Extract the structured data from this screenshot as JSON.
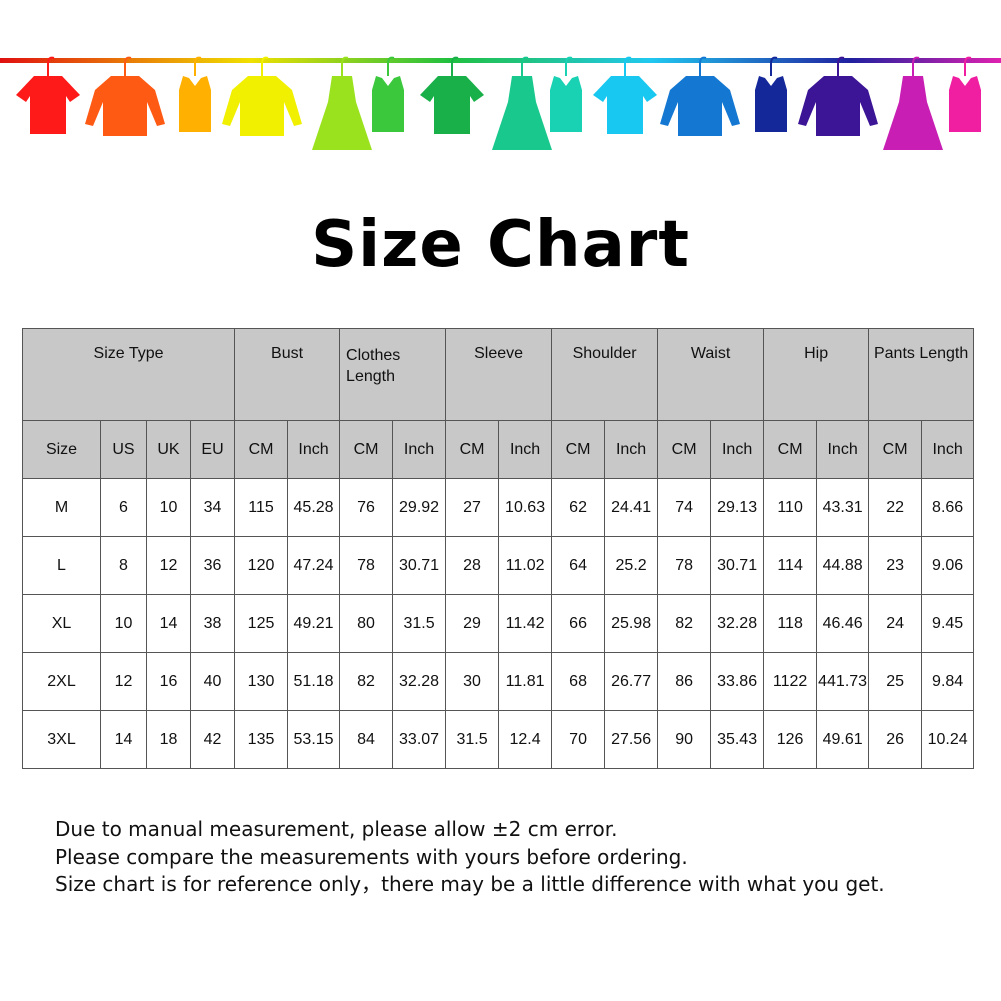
{
  "banner": {
    "icon": "hanging-clothes-rainbow",
    "colors": [
      "#ff1a1a",
      "#ff5a14",
      "#ffb000",
      "#f0f000",
      "#9be21e",
      "#3cc83c",
      "#19b04a",
      "#19c88c",
      "#19d2b4",
      "#19c8f0",
      "#1478d2",
      "#14289a",
      "#3c1496",
      "#c81eb4",
      "#f01ea0"
    ]
  },
  "title": "Size Chart",
  "table": {
    "group_headers": [
      "Size Type",
      "Bust",
      "Clothes Length",
      "Sleeve",
      "Shoulder",
      "Waist",
      "Hip",
      "Pants Length"
    ],
    "sub_headers": [
      "Size",
      "US",
      "UK",
      "EU",
      "CM",
      "Inch",
      "CM",
      "Inch",
      "CM",
      "Inch",
      "CM",
      "Inch",
      "CM",
      "Inch",
      "CM",
      "Inch",
      "CM",
      "Inch"
    ],
    "rows": [
      [
        "M",
        "6",
        "10",
        "34",
        "115",
        "45.28",
        "76",
        "29.92",
        "27",
        "10.63",
        "62",
        "24.41",
        "74",
        "29.13",
        "110",
        "43.31",
        "22",
        "8.66"
      ],
      [
        "L",
        "8",
        "12",
        "36",
        "120",
        "47.24",
        "78",
        "30.71",
        "28",
        "11.02",
        "64",
        "25.2",
        "78",
        "30.71",
        "114",
        "44.88",
        "23",
        "9.06"
      ],
      [
        "XL",
        "10",
        "14",
        "38",
        "125",
        "49.21",
        "80",
        "31.5",
        "29",
        "11.42",
        "66",
        "25.98",
        "82",
        "32.28",
        "118",
        "46.46",
        "24",
        "9.45"
      ],
      [
        "2XL",
        "12",
        "16",
        "40",
        "130",
        "51.18",
        "82",
        "32.28",
        "30",
        "11.81",
        "68",
        "26.77",
        "86",
        "33.86",
        "1122",
        "441.73",
        "25",
        "9.84"
      ],
      [
        "3XL",
        "14",
        "18",
        "42",
        "135",
        "53.15",
        "84",
        "33.07",
        "31.5",
        "12.4",
        "70",
        "27.56",
        "90",
        "35.43",
        "126",
        "49.61",
        "26",
        "10.24"
      ]
    ]
  },
  "notes": [
    "Due to manual measurement, please allow ±2 cm error.",
    "Please compare the measurements with yours before ordering.",
    "Size chart is for reference only，there may be a little difference with what you get."
  ]
}
